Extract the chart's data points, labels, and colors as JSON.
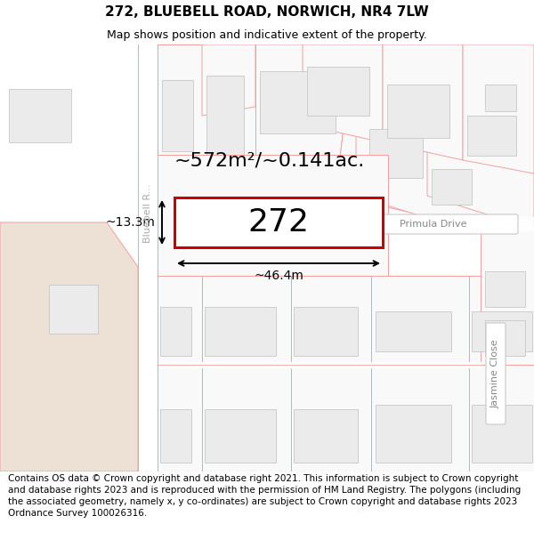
{
  "title": "272, BLUEBELL ROAD, NORWICH, NR4 7LW",
  "subtitle": "Map shows position and indicative extent of the property.",
  "footer": "Contains OS data © Crown copyright and database right 2021. This information is subject to Crown copyright and database rights 2023 and is reproduced with the permission of HM Land Registry. The polygons (including the associated geometry, namely x, y co-ordinates) are subject to Crown copyright and database rights 2023 Ordnance Survey 100026316.",
  "area_label": "~572m²/~0.141ac.",
  "width_label": "~46.4m",
  "height_label": "~13.3m",
  "plot_number": "272",
  "road_label": "Bluebell R...",
  "road2_label": "Primula Drive",
  "road3_label": "Jasmine Close",
  "map_bg": "#ffffff",
  "plot_fill": "#ffffff",
  "plot_border": "#cc0000",
  "road_fill": "#ffffff",
  "block_light": "#ebebeb",
  "block_border": "#f0a0a0",
  "left_tan": "#ede0d4",
  "title_fontsize": 11,
  "subtitle_fontsize": 9,
  "footer_fontsize": 7.5
}
